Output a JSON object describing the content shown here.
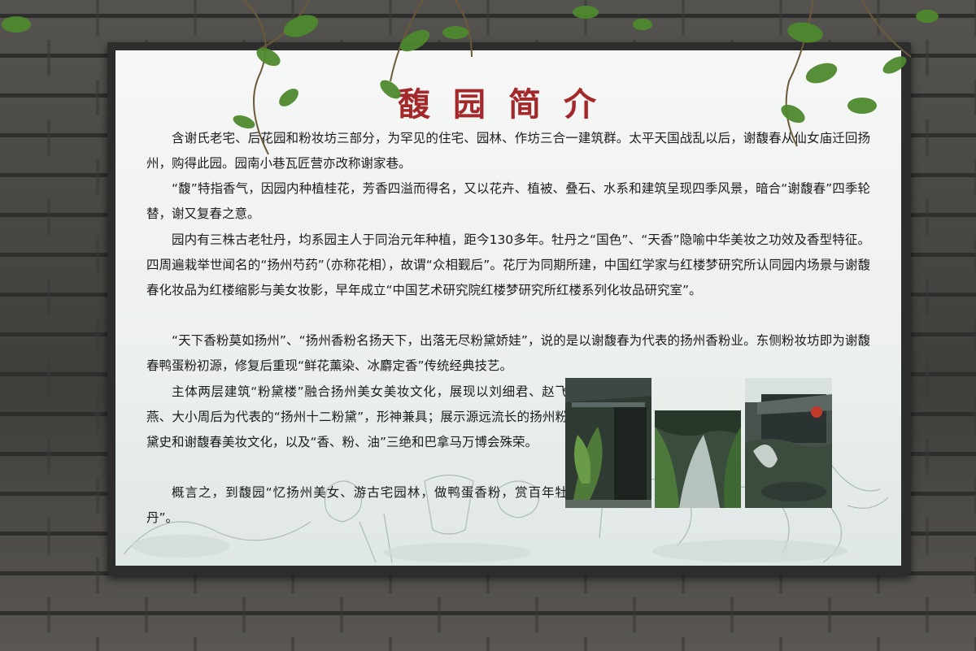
{
  "sign": {
    "title": "馥园简介",
    "paragraphs": [
      "含谢氏老宅、后花园和粉妆坊三部分，为罕见的住宅、园林、作坊三合一建筑群。太平天国战乱以后，谢馥春从仙女庙迁回扬州，购得此园。园南小巷瓦匠营亦改称谢家巷。",
      "“馥”特指香气，因园内种植桂花，芳香四溢而得名，又以花卉、植被、叠石、水系和建筑呈现四季风景，暗合“谢馥春”四季轮替，谢又复春之意。",
      "园内有三株古老牡丹，均系园主人于同治元年种植，距今130多年。牡丹之“国色”、“天香”隐喻中华美妆之功效及香型特征。四周遍栽举世闻名的“扬州芍药”（亦称花相），故谓“众相觐后”。花厅为同期所建，中国红学家与红楼梦研究所认同园内场景与谢馥春化妆品为红楼缩影与美女妆影，早年成立“中国艺术研究院红楼梦研究所红楼系列化妆品研究室”。",
      "“天下香粉莫如扬州”、“扬州香粉名扬天下，出落无尽粉黛娇娃”，说的是以谢馥春为代表的扬州香粉业。东侧粉妆坊即为谢馥春鸭蛋粉初源，修复后重现“鲜花薰染、冰麝定香”传统经典技艺。",
      "主体两层建筑“粉黛楼”融合扬州美女美妆文化，展现以刘细君、赵飞燕、大小周后为代表的“扬州十二粉黛”，形神兼具；展示源远流长的扬州粉黛史和谢馥春美妆文化，以及“香、粉、油”三绝和巴拿马万博会殊荣。",
      "概言之，到馥园“忆扬州美女、游古宅园林，做鸭蛋香粉，赏百年牡丹”。"
    ]
  },
  "colors": {
    "title": "#a3282a",
    "text": "#1c1c1c",
    "panel": "#f4f6f5",
    "frame": "#2d2d2d",
    "vine": "#4f8a2e"
  }
}
